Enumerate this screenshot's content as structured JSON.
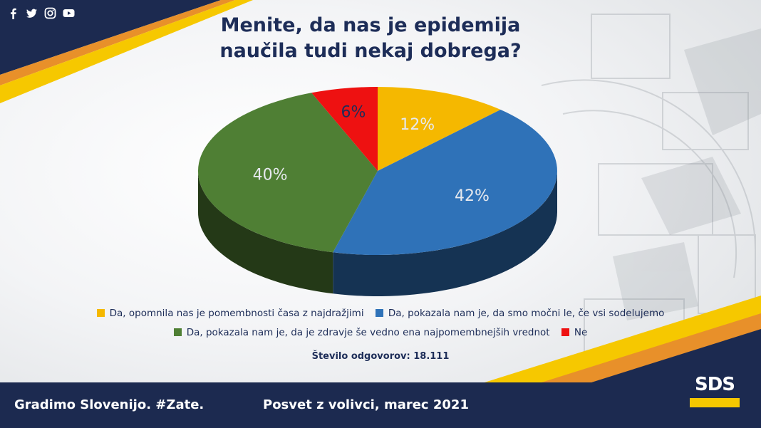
{
  "social": {
    "icons": [
      "facebook-icon",
      "twitter-icon",
      "instagram-icon",
      "youtube-icon"
    ]
  },
  "title_line1": "Menite, da nas je epidemija",
  "title_line2": "naučila tudi nekaj dobrega?",
  "chart_data": {
    "type": "pie",
    "title": "Menite, da nas je epidemija naučila tudi nekaj dobrega?",
    "three_d": true,
    "slices": [
      {
        "label": "Da, opomnila nas je pomembnosti časa z najdražjimi",
        "value": 12,
        "display": "12%",
        "color": "#f5b800"
      },
      {
        "label": "Da, pokazala nam je, da smo močni le, če vsi sodelujemo",
        "value": 42,
        "display": "42%",
        "color": "#2f72b8"
      },
      {
        "label": "Da, pokazala nam je, da je zdravje še vedno ena najpomembnejših vrednot",
        "value": 40,
        "display": "40%",
        "color": "#4f7f34"
      },
      {
        "label": "Ne",
        "value": 6,
        "display": "6%",
        "color": "#ee1111"
      }
    ],
    "legend_position": "bottom"
  },
  "responses": "Število odgovorov: 18.111",
  "footer": {
    "left": "Gradimo Slovenijo. #Zate.",
    "middle": "Posvet z volivci, marec 2021"
  },
  "logo": {
    "text": "SDS"
  },
  "colors": {
    "navy": "#1c2a50",
    "yellow": "#f6c800",
    "orange": "#e8902a"
  }
}
